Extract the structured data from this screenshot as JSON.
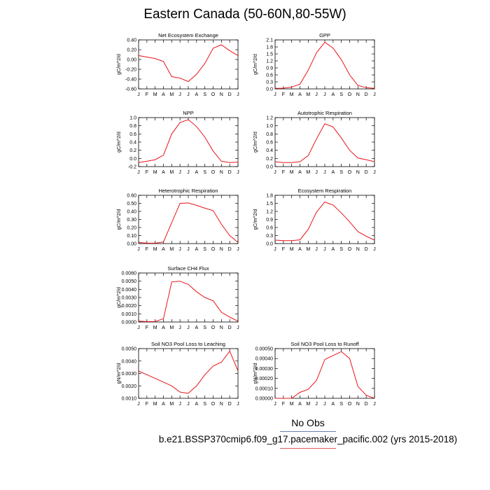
{
  "title": "Eastern Canada (50-60N,80-55W)",
  "legend": {
    "obs_label": "No Obs",
    "model_label": "b.e21.BSSP370cmip6.f09_g17.pacemaker_pacific.002 (yrs 2015-2018)",
    "obs_color": "#6b7fb5",
    "model_color": "#e05a5a"
  },
  "line_color": "#e8141a",
  "chart_data": [
    {
      "type": "line",
      "title": "Net Ecosystem Exchange",
      "ylabel": "gC/m^2/d",
      "x": [
        "J",
        "F",
        "M",
        "A",
        "M",
        "J",
        "J",
        "A",
        "S",
        "O",
        "N",
        "D",
        "J"
      ],
      "yticks": [
        "0.40",
        "0.20",
        "0.00",
        "-0.20",
        "-0.40",
        "-0.60"
      ],
      "ylim": [
        -0.6,
        0.4
      ],
      "values": [
        0.08,
        0.05,
        0.02,
        -0.04,
        -0.35,
        -0.38,
        -0.45,
        -0.3,
        -0.08,
        0.23,
        0.3,
        0.18,
        0.08
      ]
    },
    {
      "type": "line",
      "title": "GPP",
      "ylabel": "gC/m^2/d",
      "x": [
        "J",
        "F",
        "M",
        "A",
        "M",
        "J",
        "J",
        "A",
        "S",
        "O",
        "N",
        "D",
        "J"
      ],
      "yticks": [
        "2.1",
        "1.8",
        "1.5",
        "1.2",
        "0.9",
        "0.6",
        "0.3",
        "0.0"
      ],
      "ylim": [
        0,
        2.1
      ],
      "values": [
        0.02,
        0.03,
        0.08,
        0.2,
        0.8,
        1.55,
        2.0,
        1.75,
        1.25,
        0.6,
        0.15,
        0.05,
        0.02
      ]
    },
    {
      "type": "line",
      "title": "NPP",
      "ylabel": "gC/m^2/d",
      "x": [
        "J",
        "F",
        "M",
        "A",
        "M",
        "J",
        "J",
        "A",
        "S",
        "O",
        "N",
        "D",
        "J"
      ],
      "yticks": [
        "1.0",
        "0.8",
        "0.6",
        "0.4",
        "0.2",
        "0.0",
        "-0.2"
      ],
      "ylim": [
        -0.2,
        1.0
      ],
      "values": [
        -0.1,
        -0.07,
        -0.03,
        0.08,
        0.6,
        0.88,
        0.95,
        0.78,
        0.52,
        0.18,
        -0.07,
        -0.1,
        -0.09
      ]
    },
    {
      "type": "line",
      "title": "Autotrophic Respiration",
      "ylabel": "gC/m^2/d",
      "x": [
        "J",
        "F",
        "M",
        "A",
        "M",
        "J",
        "J",
        "A",
        "S",
        "O",
        "N",
        "D",
        "J"
      ],
      "yticks": [
        "1.2",
        "1.0",
        "0.8",
        "0.6",
        "0.4",
        "0.2",
        "0.0"
      ],
      "ylim": [
        0,
        1.2
      ],
      "values": [
        0.12,
        0.1,
        0.1,
        0.12,
        0.27,
        0.68,
        1.05,
        0.97,
        0.7,
        0.4,
        0.21,
        0.17,
        0.12
      ]
    },
    {
      "type": "line",
      "title": "Heterotrophic Respiration",
      "ylabel": "gC/m^2/d",
      "x": [
        "J",
        "F",
        "M",
        "A",
        "M",
        "J",
        "J",
        "A",
        "S",
        "O",
        "N",
        "D",
        "J"
      ],
      "yticks": [
        "0.60",
        "0.50",
        "0.40",
        "0.30",
        "0.20",
        "0.10",
        "0.00"
      ],
      "ylim": [
        0,
        0.6
      ],
      "values": [
        0.015,
        0.005,
        0.005,
        0.02,
        0.26,
        0.5,
        0.505,
        0.475,
        0.44,
        0.41,
        0.24,
        0.1,
        0.015
      ]
    },
    {
      "type": "line",
      "title": "Ecosystem Respiration",
      "ylabel": "gC/m^2/d",
      "x": [
        "J",
        "F",
        "M",
        "A",
        "M",
        "J",
        "J",
        "A",
        "S",
        "O",
        "N",
        "D",
        "J"
      ],
      "yticks": [
        "1.8",
        "1.5",
        "1.2",
        "0.9",
        "0.6",
        "0.3",
        "0.0"
      ],
      "ylim": [
        0,
        1.8
      ],
      "values": [
        0.13,
        0.11,
        0.11,
        0.14,
        0.53,
        1.18,
        1.55,
        1.44,
        1.14,
        0.81,
        0.45,
        0.27,
        0.13
      ]
    },
    {
      "type": "line",
      "title": "Surface CH4 Flux",
      "ylabel": "gC/m^2/d",
      "x": [
        "J",
        "F",
        "M",
        "A",
        "M",
        "J",
        "J",
        "A",
        "S",
        "O",
        "N",
        "D",
        "J"
      ],
      "yticks": [
        "0.0060",
        "0.0050",
        "0.0040",
        "0.0030",
        "0.0020",
        "0.0010",
        "0.0000"
      ],
      "ylim": [
        0,
        0.006
      ],
      "values": [
        0.0001,
        5e-05,
        5e-05,
        0.0004,
        0.0049,
        0.005,
        0.0046,
        0.0037,
        0.003,
        0.0026,
        0.0012,
        0.0006,
        0.0001
      ]
    },
    {
      "type": "line",
      "title": "Soil NO3 Pool Loss to Leaching",
      "ylabel": "gN/m^2/d",
      "x": [
        "J",
        "F",
        "M",
        "A",
        "M",
        "J",
        "J",
        "A",
        "S",
        "O",
        "N",
        "D",
        "J"
      ],
      "yticks": [
        "0.0050",
        "0.0040",
        "0.0030",
        "0.0020",
        "0.0010"
      ],
      "ylim": [
        0.001,
        0.005
      ],
      "values": [
        0.0032,
        0.0029,
        0.0026,
        0.0023,
        0.002,
        0.0015,
        0.0014,
        0.002,
        0.0029,
        0.0036,
        0.0039,
        0.0048,
        0.0032
      ]
    },
    {
      "type": "line",
      "title": "Soil NO3 Pool Loss to Runoff",
      "ylabel": "gN/m^2/d",
      "x": [
        "J",
        "F",
        "M",
        "A",
        "M",
        "J",
        "J",
        "A",
        "S",
        "O",
        "N",
        "D",
        "J"
      ],
      "yticks": [
        "0.00050",
        "0.00040",
        "0.00030",
        "0.00020",
        "0.00010",
        "0.00000"
      ],
      "ylim": [
        0,
        0.0005
      ],
      "values": [
        0.0,
        0.0,
        0.0,
        6e-05,
        9e-05,
        0.00018,
        0.00039,
        0.00043,
        0.00047,
        0.0004,
        0.00012,
        3e-05,
        0.0
      ]
    }
  ]
}
